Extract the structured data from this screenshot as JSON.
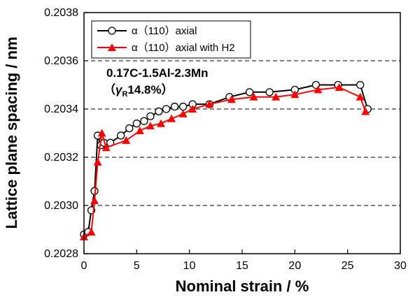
{
  "chart_data": {
    "type": "line",
    "title": "",
    "xlabel": "Nominal strain / %",
    "ylabel": "Lattice plane spacing / nm",
    "xlim": [
      0,
      30
    ],
    "ylim": [
      0.2028,
      0.2038
    ],
    "xticks": [
      "0",
      "5",
      "10",
      "15",
      "20",
      "25",
      "30"
    ],
    "yticks": [
      "0.2028",
      "0.2030",
      "0.2032",
      "0.2034",
      "0.2036",
      "0.2038"
    ],
    "grid": "horizontal dashed",
    "legend_position": "top-left",
    "annotation": {
      "line1": "0.17C-1.5Al-2.3Mn",
      "line2_prefix": "（",
      "line2_symbol": "γ",
      "line2_subscript": "R",
      "line2_value": "14.8%）"
    },
    "series": [
      {
        "name": "α（110）axial",
        "color": "#000000",
        "marker": "open-circle",
        "x": [
          0,
          0.4,
          0.7,
          1.0,
          1.3,
          1.6,
          1.9,
          2.5,
          3.5,
          4.3,
          5.0,
          5.7,
          6.3,
          7.1,
          7.8,
          8.6,
          9.4,
          10.3,
          11.9,
          13.8,
          15.7,
          17.6,
          20.0,
          22.0,
          24.1,
          26.2,
          26.9
        ],
        "y": [
          0.20288,
          0.20289,
          0.20298,
          0.20306,
          0.20329,
          0.20325,
          0.20326,
          0.20326,
          0.20329,
          0.20332,
          0.20334,
          0.20335,
          0.20337,
          0.20339,
          0.2034,
          0.20341,
          0.20341,
          0.20342,
          0.20342,
          0.20345,
          0.20347,
          0.20347,
          0.20348,
          0.2035,
          0.2035,
          0.2035,
          0.2034
        ]
      },
      {
        "name": "α（110）axial with H2",
        "color": "#ff0000",
        "marker": "filled-triangle",
        "x": [
          0,
          0.7,
          1.0,
          1.3,
          1.7,
          2.1,
          4.0,
          5.3,
          6.3,
          7.3,
          8.3,
          9.4,
          10.3,
          11.9,
          14.0,
          16.1,
          18.2,
          20.0,
          22.2,
          24.2,
          26.2,
          26.7
        ],
        "y": [
          0.20287,
          0.20289,
          0.20302,
          0.20318,
          0.2033,
          0.20324,
          0.20327,
          0.20331,
          0.20333,
          0.20334,
          0.20336,
          0.20338,
          0.2034,
          0.20342,
          0.20344,
          0.20345,
          0.20345,
          0.20346,
          0.20348,
          0.20349,
          0.20345,
          0.20339
        ]
      }
    ]
  }
}
